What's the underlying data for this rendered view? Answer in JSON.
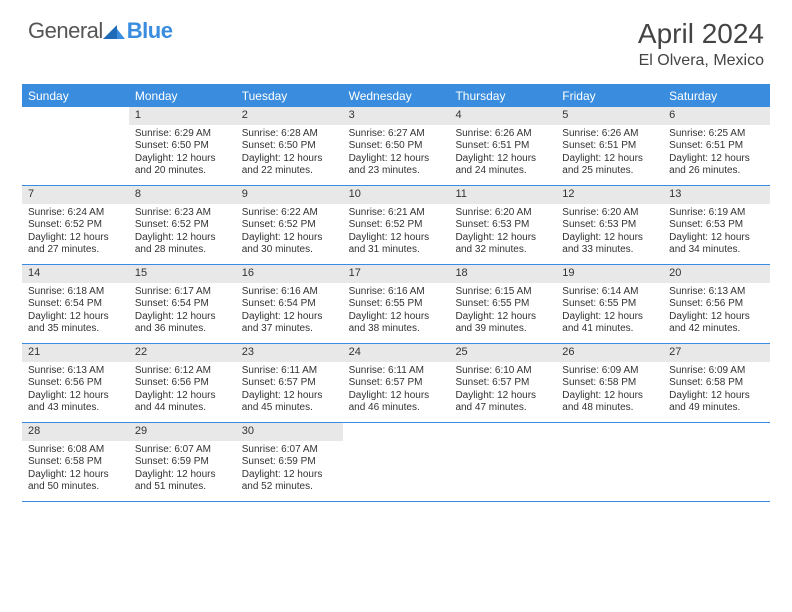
{
  "logo": {
    "text1": "General",
    "text2": "Blue",
    "text_color": "#555555",
    "accent_color": "#3a8dde"
  },
  "title": "April 2024",
  "location": "El Olvera, Mexico",
  "header_bg": "#3a8dde",
  "header_text_color": "#ffffff",
  "daynum_bg": "#e8e8e8",
  "border_color": "#3a8dde",
  "body_font_size": 10,
  "dayNames": [
    "Sunday",
    "Monday",
    "Tuesday",
    "Wednesday",
    "Thursday",
    "Friday",
    "Saturday"
  ],
  "weeks": [
    [
      {
        "n": "",
        "sr": "",
        "ss": "",
        "dl": ""
      },
      {
        "n": "1",
        "sr": "6:29 AM",
        "ss": "6:50 PM",
        "dl": "12 hours and 20 minutes."
      },
      {
        "n": "2",
        "sr": "6:28 AM",
        "ss": "6:50 PM",
        "dl": "12 hours and 22 minutes."
      },
      {
        "n": "3",
        "sr": "6:27 AM",
        "ss": "6:50 PM",
        "dl": "12 hours and 23 minutes."
      },
      {
        "n": "4",
        "sr": "6:26 AM",
        "ss": "6:51 PM",
        "dl": "12 hours and 24 minutes."
      },
      {
        "n": "5",
        "sr": "6:26 AM",
        "ss": "6:51 PM",
        "dl": "12 hours and 25 minutes."
      },
      {
        "n": "6",
        "sr": "6:25 AM",
        "ss": "6:51 PM",
        "dl": "12 hours and 26 minutes."
      }
    ],
    [
      {
        "n": "7",
        "sr": "6:24 AM",
        "ss": "6:52 PM",
        "dl": "12 hours and 27 minutes."
      },
      {
        "n": "8",
        "sr": "6:23 AM",
        "ss": "6:52 PM",
        "dl": "12 hours and 28 minutes."
      },
      {
        "n": "9",
        "sr": "6:22 AM",
        "ss": "6:52 PM",
        "dl": "12 hours and 30 minutes."
      },
      {
        "n": "10",
        "sr": "6:21 AM",
        "ss": "6:52 PM",
        "dl": "12 hours and 31 minutes."
      },
      {
        "n": "11",
        "sr": "6:20 AM",
        "ss": "6:53 PM",
        "dl": "12 hours and 32 minutes."
      },
      {
        "n": "12",
        "sr": "6:20 AM",
        "ss": "6:53 PM",
        "dl": "12 hours and 33 minutes."
      },
      {
        "n": "13",
        "sr": "6:19 AM",
        "ss": "6:53 PM",
        "dl": "12 hours and 34 minutes."
      }
    ],
    [
      {
        "n": "14",
        "sr": "6:18 AM",
        "ss": "6:54 PM",
        "dl": "12 hours and 35 minutes."
      },
      {
        "n": "15",
        "sr": "6:17 AM",
        "ss": "6:54 PM",
        "dl": "12 hours and 36 minutes."
      },
      {
        "n": "16",
        "sr": "6:16 AM",
        "ss": "6:54 PM",
        "dl": "12 hours and 37 minutes."
      },
      {
        "n": "17",
        "sr": "6:16 AM",
        "ss": "6:55 PM",
        "dl": "12 hours and 38 minutes."
      },
      {
        "n": "18",
        "sr": "6:15 AM",
        "ss": "6:55 PM",
        "dl": "12 hours and 39 minutes."
      },
      {
        "n": "19",
        "sr": "6:14 AM",
        "ss": "6:55 PM",
        "dl": "12 hours and 41 minutes."
      },
      {
        "n": "20",
        "sr": "6:13 AM",
        "ss": "6:56 PM",
        "dl": "12 hours and 42 minutes."
      }
    ],
    [
      {
        "n": "21",
        "sr": "6:13 AM",
        "ss": "6:56 PM",
        "dl": "12 hours and 43 minutes."
      },
      {
        "n": "22",
        "sr": "6:12 AM",
        "ss": "6:56 PM",
        "dl": "12 hours and 44 minutes."
      },
      {
        "n": "23",
        "sr": "6:11 AM",
        "ss": "6:57 PM",
        "dl": "12 hours and 45 minutes."
      },
      {
        "n": "24",
        "sr": "6:11 AM",
        "ss": "6:57 PM",
        "dl": "12 hours and 46 minutes."
      },
      {
        "n": "25",
        "sr": "6:10 AM",
        "ss": "6:57 PM",
        "dl": "12 hours and 47 minutes."
      },
      {
        "n": "26",
        "sr": "6:09 AM",
        "ss": "6:58 PM",
        "dl": "12 hours and 48 minutes."
      },
      {
        "n": "27",
        "sr": "6:09 AM",
        "ss": "6:58 PM",
        "dl": "12 hours and 49 minutes."
      }
    ],
    [
      {
        "n": "28",
        "sr": "6:08 AM",
        "ss": "6:58 PM",
        "dl": "12 hours and 50 minutes."
      },
      {
        "n": "29",
        "sr": "6:07 AM",
        "ss": "6:59 PM",
        "dl": "12 hours and 51 minutes."
      },
      {
        "n": "30",
        "sr": "6:07 AM",
        "ss": "6:59 PM",
        "dl": "12 hours and 52 minutes."
      },
      {
        "n": "",
        "sr": "",
        "ss": "",
        "dl": ""
      },
      {
        "n": "",
        "sr": "",
        "ss": "",
        "dl": ""
      },
      {
        "n": "",
        "sr": "",
        "ss": "",
        "dl": ""
      },
      {
        "n": "",
        "sr": "",
        "ss": "",
        "dl": ""
      }
    ]
  ],
  "labels": {
    "sunrise": "Sunrise:",
    "sunset": "Sunset:",
    "daylight": "Daylight:"
  }
}
